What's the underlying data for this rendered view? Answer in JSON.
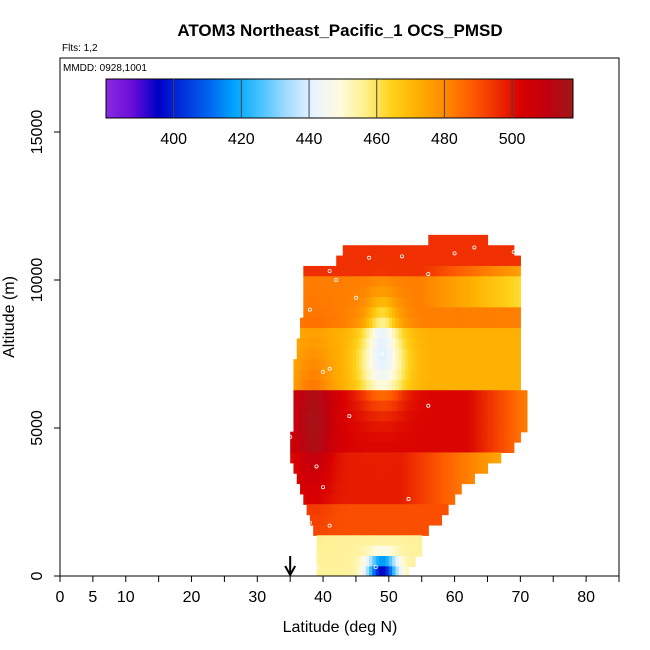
{
  "chart_data": {
    "type": "heatmap",
    "title": "ATOM3 Northeast_Pacific_1 OCS_PMSD",
    "annotation_flights": "Flts: 1,2",
    "annotation_dates": "MMDD: 0928,1001",
    "xlabel": "Latitude (deg N)",
    "ylabel": "Altitude (m)",
    "xlim": [
      0,
      85
    ],
    "ylim": [
      0,
      17500
    ],
    "x_ticks": [
      0,
      5,
      10,
      20,
      30,
      40,
      50,
      60,
      70,
      80
    ],
    "x_minor_ticks": [
      15,
      25,
      35,
      45,
      55,
      65,
      75,
      85
    ],
    "y_ticks": [
      0,
      5000,
      10000,
      15000
    ],
    "arrow_latitude": 35,
    "colorbar": {
      "min": 380,
      "max": 518,
      "ticks": [
        400,
        420,
        440,
        460,
        480,
        500
      ],
      "colors": [
        "#8a2be2",
        "#6a0dd8",
        "#0000c8",
        "#0033dd",
        "#0066f0",
        "#00a8ff",
        "#4cc4ff",
        "#a6dcff",
        "#e8f4ff",
        "#fffbe0",
        "#fff08a",
        "#ffd21a",
        "#ffb000",
        "#ff8c00",
        "#ff6000",
        "#f03000",
        "#d80000",
        "#c00010",
        "#a01818"
      ]
    },
    "profile_x_range": [
      37,
      73
    ],
    "profiles": [
      {
        "alt": 11350,
        "lo": 56,
        "hi": 65
      },
      {
        "alt": 11000,
        "lo": 43,
        "hi": 69
      },
      {
        "alt": 10650,
        "lo": 42,
        "hi": 70
      },
      {
        "alt": 10300,
        "lo": 37,
        "hi": 70
      },
      {
        "alt": 9950,
        "lo": 37,
        "hi": 70
      },
      {
        "alt": 9600,
        "lo": 37,
        "hi": 70
      },
      {
        "alt": 9250,
        "lo": 37,
        "hi": 70
      },
      {
        "alt": 8900,
        "lo": 37,
        "hi": 70
      },
      {
        "alt": 8550,
        "lo": 36.5,
        "hi": 70
      },
      {
        "alt": 8200,
        "lo": 36.5,
        "hi": 70
      },
      {
        "alt": 7850,
        "lo": 36,
        "hi": 70
      },
      {
        "alt": 7500,
        "lo": 36,
        "hi": 70
      },
      {
        "alt": 7150,
        "lo": 35.5,
        "hi": 70
      },
      {
        "alt": 6800,
        "lo": 35.5,
        "hi": 70
      },
      {
        "alt": 6450,
        "lo": 35.5,
        "hi": 70
      },
      {
        "alt": 6100,
        "lo": 35.5,
        "hi": 71
      },
      {
        "alt": 5750,
        "lo": 35.5,
        "hi": 71
      },
      {
        "alt": 5400,
        "lo": 35.5,
        "hi": 71
      },
      {
        "alt": 5050,
        "lo": 35.5,
        "hi": 71
      },
      {
        "alt": 4700,
        "lo": 35,
        "hi": 70
      },
      {
        "alt": 4350,
        "lo": 35,
        "hi": 69
      },
      {
        "alt": 4000,
        "lo": 35,
        "hi": 67
      },
      {
        "alt": 3650,
        "lo": 35.5,
        "hi": 65
      },
      {
        "alt": 3300,
        "lo": 36,
        "hi": 63
      },
      {
        "alt": 2950,
        "lo": 36.5,
        "hi": 61
      },
      {
        "alt": 2600,
        "lo": 37,
        "hi": 60
      },
      {
        "alt": 2250,
        "lo": 37.5,
        "hi": 59
      },
      {
        "alt": 1900,
        "lo": 38,
        "hi": 58
      },
      {
        "alt": 1550,
        "lo": 38.5,
        "hi": 56
      },
      {
        "alt": 1200,
        "lo": 39,
        "hi": 55
      },
      {
        "alt": 850,
        "lo": 39,
        "hi": 55
      },
      {
        "alt": 500,
        "lo": 39,
        "hi": 54
      },
      {
        "alt": 150,
        "lo": 39,
        "hi": 53
      }
    ],
    "sample_points": [
      {
        "lat": 41,
        "alt": 10300
      },
      {
        "lat": 42,
        "alt": 10000
      },
      {
        "lat": 47,
        "alt": 10750
      },
      {
        "lat": 52,
        "alt": 10800
      },
      {
        "lat": 56,
        "alt": 10200
      },
      {
        "lat": 60,
        "alt": 10900
      },
      {
        "lat": 63,
        "alt": 11100
      },
      {
        "lat": 69,
        "alt": 10950
      },
      {
        "lat": 38,
        "alt": 9000
      },
      {
        "lat": 45,
        "alt": 9400
      },
      {
        "lat": 49,
        "alt": 7500
      },
      {
        "lat": 40,
        "alt": 6900
      },
      {
        "lat": 41,
        "alt": 7000
      },
      {
        "lat": 44,
        "alt": 5400
      },
      {
        "lat": 56,
        "alt": 5750
      },
      {
        "lat": 35,
        "alt": 4700
      },
      {
        "lat": 39,
        "alt": 3700
      },
      {
        "lat": 40,
        "alt": 3000
      },
      {
        "lat": 53,
        "alt": 2600
      },
      {
        "lat": 38,
        "alt": 1800
      },
      {
        "lat": 41,
        "alt": 1700
      },
      {
        "lat": 39,
        "alt": 300
      },
      {
        "lat": 48,
        "alt": 300
      },
      {
        "lat": 54,
        "alt": 200
      }
    ]
  }
}
